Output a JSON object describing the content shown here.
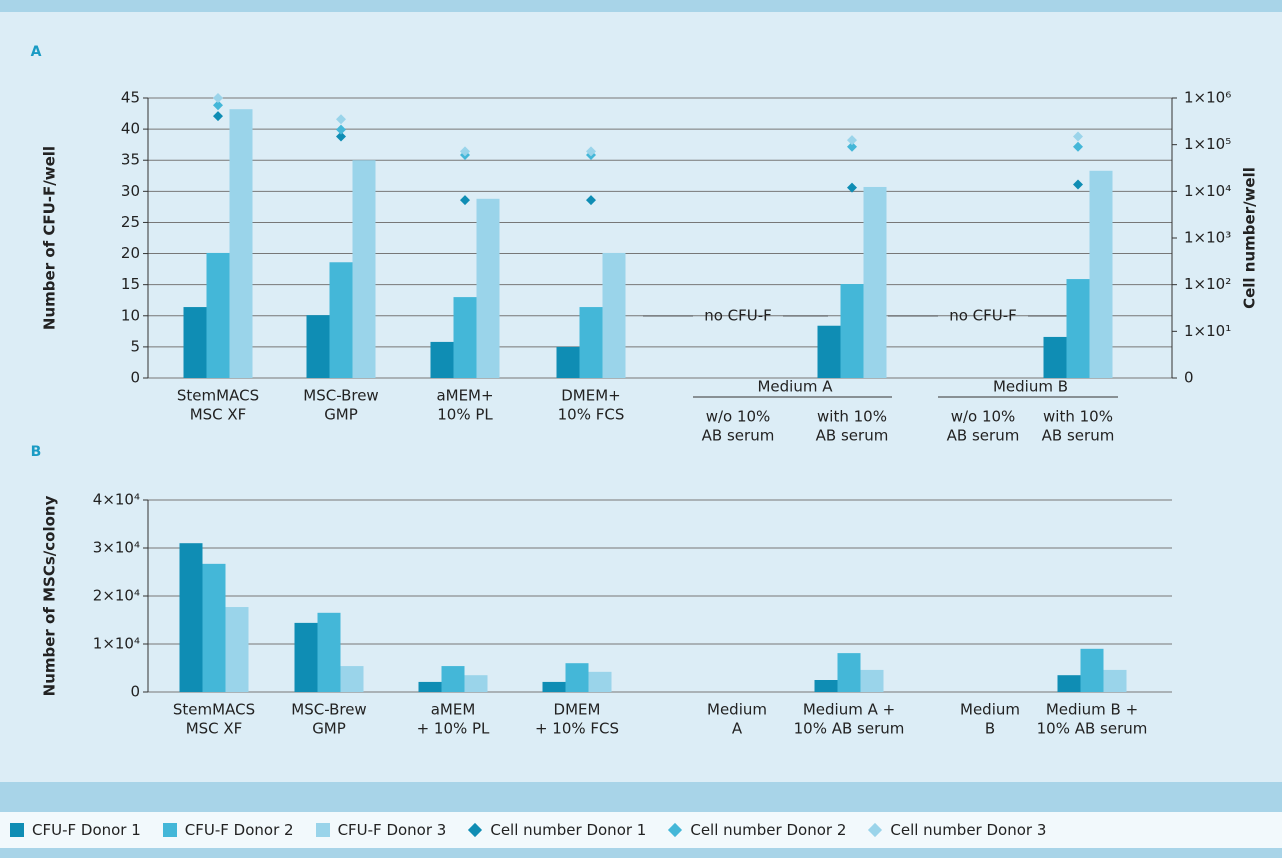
{
  "chart_data": [
    {
      "type": "bar",
      "label": "A",
      "ylabel": "Number of CFU-F/well",
      "y2label": "Cell number/well",
      "categories": [
        [
          "StemMACS",
          "MSC XF"
        ],
        [
          "MSC-Brew",
          "GMP"
        ],
        [
          "aMEM+",
          "10% PL"
        ],
        [
          "DMEM+",
          "10% FCS"
        ],
        [
          "w/o 10%",
          "AB serum"
        ],
        [
          "with 10%",
          "AB serum"
        ],
        [
          "w/o 10%",
          "AB serum"
        ],
        [
          "with 10%",
          "AB serum"
        ]
      ],
      "groups": [
        "Medium A",
        "Medium B"
      ],
      "annotations": [
        "no CFU-F",
        "no CFU-F"
      ],
      "ylim": [
        0,
        45
      ],
      "yticks": [
        0,
        5,
        10,
        15,
        20,
        25,
        30,
        35,
        40,
        45
      ],
      "y2scale": "log",
      "y2lim": [
        1,
        1000000
      ],
      "y2ticks": [
        {
          "value": 1,
          "label": "0"
        },
        {
          "value": 10,
          "label": "1×10¹"
        },
        {
          "value": 100,
          "label": "1×10²"
        },
        {
          "value": 1000,
          "label": "1×10³"
        },
        {
          "value": 10000,
          "label": "1×10⁴"
        },
        {
          "value": 100000,
          "label": "1×10⁵"
        },
        {
          "value": 1000000,
          "label": "1×10⁶"
        }
      ],
      "grid": true,
      "series": [
        {
          "name": "CFU-F Donor 1",
          "color": "#0f8db4",
          "values": [
            11.4,
            10.1,
            5.8,
            5.0,
            null,
            8.4,
            null,
            6.6
          ]
        },
        {
          "name": "CFU-F Donor 2",
          "color": "#44b7d8",
          "values": [
            20.1,
            18.6,
            13.0,
            11.4,
            null,
            15.1,
            null,
            15.9
          ]
        },
        {
          "name": "CFU-F Donor 3",
          "color": "#9ad4ea",
          "values": [
            43.2,
            35.0,
            28.8,
            20.1,
            null,
            30.7,
            null,
            33.3
          ]
        },
        {
          "name": "Cell number Donor 1",
          "color": "#0f8db4",
          "axis": "y2",
          "marker": "diamond",
          "values": [
            410000,
            150000,
            6500,
            6500,
            null,
            12000,
            null,
            14000
          ]
        },
        {
          "name": "Cell number Donor 2",
          "color": "#44b7d8",
          "axis": "y2",
          "marker": "diamond",
          "values": [
            700000,
            210000,
            60000,
            60000,
            null,
            90000,
            null,
            90000
          ]
        },
        {
          "name": "Cell number Donor 3",
          "color": "#9ad4ea",
          "axis": "y2",
          "marker": "diamond",
          "values": [
            1000000,
            350000,
            72000,
            72000,
            null,
            125000,
            null,
            150000
          ]
        }
      ]
    },
    {
      "type": "bar",
      "label": "B",
      "ylabel": "Number of MSCs/colony",
      "categories": [
        [
          "StemMACS",
          "MSC XF"
        ],
        [
          "MSC-Brew",
          "GMP"
        ],
        [
          "aMEM",
          "+ 10% PL"
        ],
        [
          "DMEM",
          "+ 10% FCS"
        ],
        [
          "Medium",
          "A"
        ],
        [
          "Medium A +",
          "10% AB serum"
        ],
        [
          "Medium",
          "B"
        ],
        [
          "Medium B +",
          "10% AB serum"
        ]
      ],
      "ylim": [
        0,
        40000
      ],
      "yticks": [
        0,
        {
          "value": 10000,
          "label": "1×10⁴"
        },
        {
          "value": 20000,
          "label": "2×10⁴"
        },
        {
          "value": 30000,
          "label": "3×10⁴"
        },
        {
          "value": 40000,
          "label": "4×10⁴"
        }
      ],
      "grid": true,
      "series": [
        {
          "color": "#0f8db4",
          "values": [
            31000,
            14400,
            2100,
            2100,
            null,
            2500,
            null,
            3500
          ]
        },
        {
          "color": "#44b7d8",
          "values": [
            26700,
            16500,
            5400,
            6000,
            null,
            8100,
            null,
            9000
          ]
        },
        {
          "color": "#9ad4ea",
          "values": [
            17700,
            5400,
            3500,
            4200,
            null,
            4600,
            null,
            4600
          ]
        }
      ]
    }
  ]
}
